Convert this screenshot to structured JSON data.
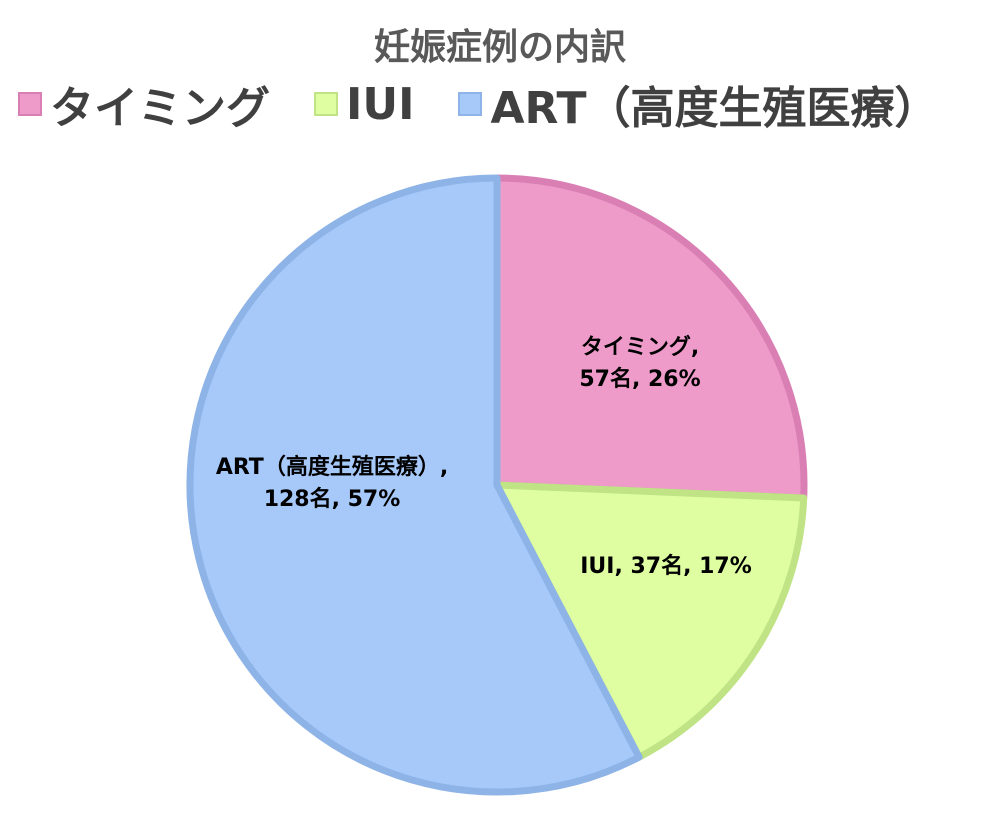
{
  "title": "妊娠症例の内訳",
  "colors": {
    "text_title": "#595959",
    "text_legend": "#404040"
  },
  "chart_data": {
    "type": "pie",
    "title": "妊娠症例の内訳",
    "legend_position": "top",
    "slices": [
      {
        "name": "タイミング",
        "count": 57,
        "percent": 26,
        "label_lines": [
          "タイミング,",
          "57名, 26%"
        ],
        "fill": "#EE9BCA",
        "stroke": "#D97FB4"
      },
      {
        "name": "IUI",
        "count": 37,
        "percent": 17,
        "label_lines": [
          "IUI, 37名, 17%"
        ],
        "fill": "#DFFEA2",
        "stroke": "#BFE385"
      },
      {
        "name": "ART（高度生殖医療）",
        "count": 128,
        "percent": 57,
        "label_lines": [
          "ART（高度生殖医療）,",
          "128名, 57%"
        ],
        "fill": "#A6C9FA",
        "stroke": "#8EB3E6"
      }
    ]
  }
}
